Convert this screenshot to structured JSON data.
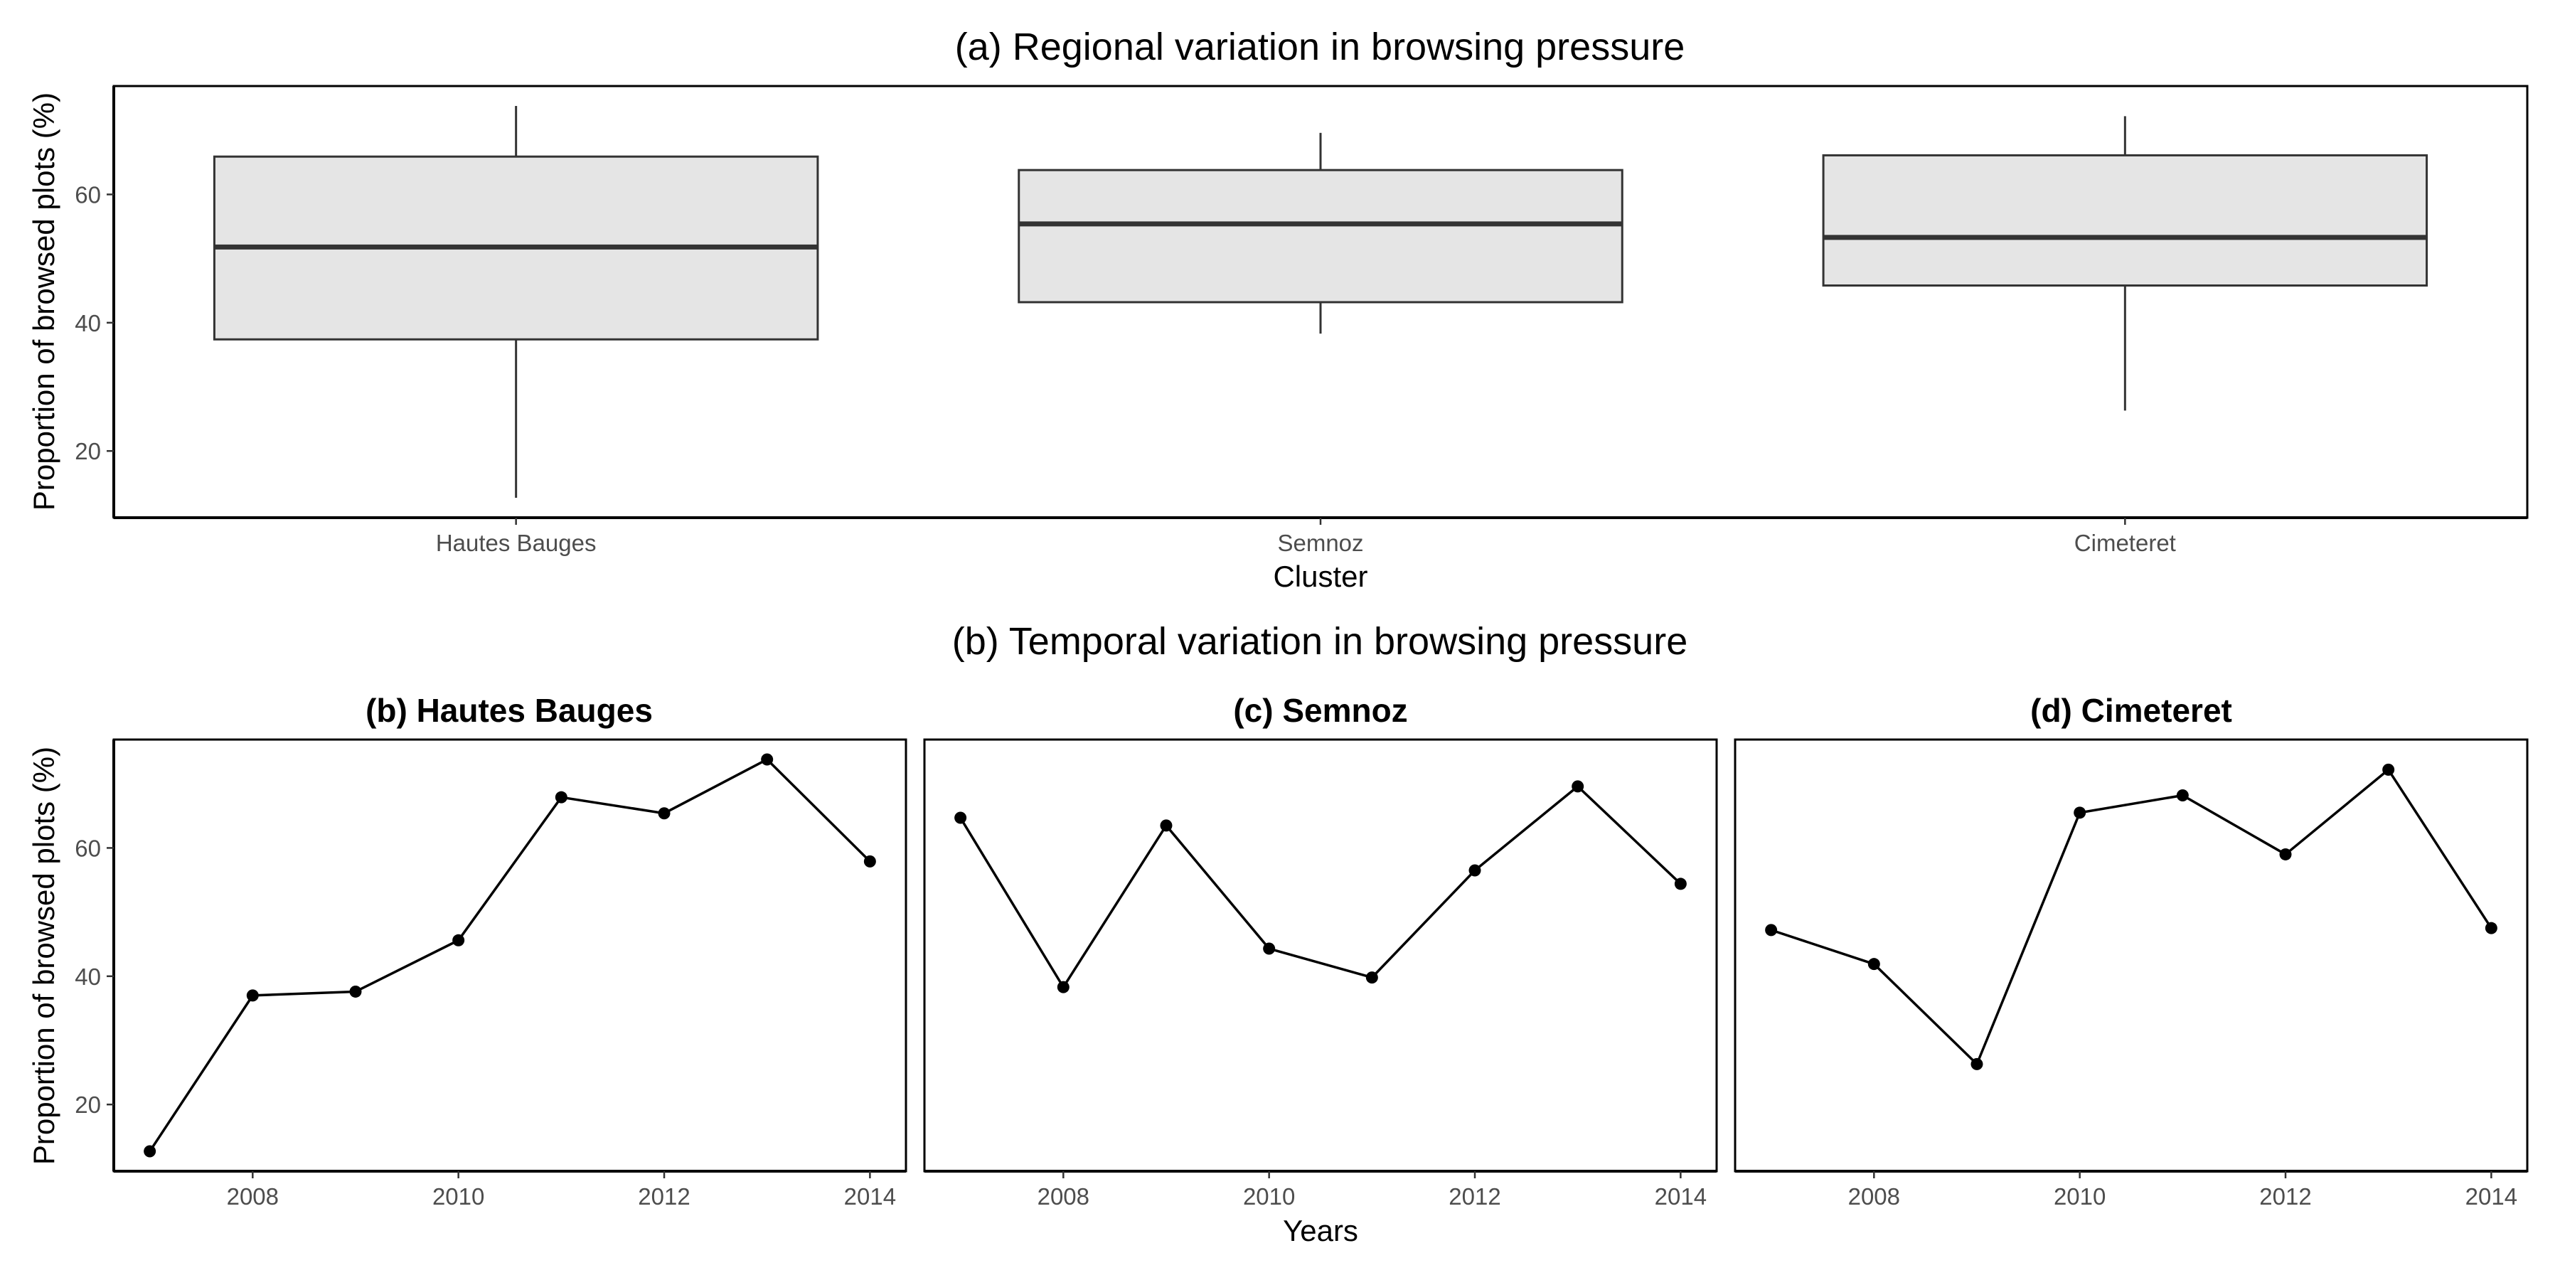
{
  "figure": {
    "title_a": "(a) Regional variation in browsing pressure",
    "title_b": "(b) Temporal variation in browsing pressure",
    "colors": {
      "box_fill": "#e5e5e5",
      "box_stroke": "#333333",
      "line": "#000000",
      "frame": "#000000",
      "tick_text": "#4d4d4d"
    }
  },
  "chart_data": [
    {
      "type": "boxplot",
      "title": "(a) Regional variation in browsing pressure",
      "xlabel": "Cluster",
      "ylabel": "Proportion of browsed plots (%)",
      "categories": [
        "Hautes Bauges",
        "Semnoz",
        "Cimeteret"
      ],
      "boxes": [
        {
          "category": "Hautes Bauges",
          "min": 12.7,
          "q1": 37.4,
          "median": 51.8,
          "q3": 65.9,
          "max": 73.8
        },
        {
          "category": "Semnoz",
          "min": 38.3,
          "q1": 43.2,
          "median": 55.4,
          "q3": 63.8,
          "max": 69.6
        },
        {
          "category": "Cimeteret",
          "min": 26.3,
          "q1": 45.8,
          "median": 53.3,
          "q3": 66.1,
          "max": 72.2
        }
      ],
      "yticks": [
        20,
        40,
        60
      ],
      "ylim": [
        9.6,
        76.9
      ],
      "grid": false
    },
    {
      "type": "line",
      "title": "(b) Temporal variation in browsing pressure",
      "xlabel": "Years",
      "ylabel": "Proportion of browsed plots (%)",
      "xticks": [
        2008,
        2010,
        2012,
        2014
      ],
      "yticks": [
        20,
        40,
        60
      ],
      "xlim": [
        2006.65,
        2014.35
      ],
      "ylim": [
        9.6,
        76.9
      ],
      "grid": false,
      "panels": [
        {
          "title": "(b) Hautes Bauges",
          "x": [
            2007,
            2008,
            2009,
            2010,
            2011,
            2012,
            2013,
            2014
          ],
          "y": [
            12.7,
            37.0,
            37.6,
            45.6,
            67.9,
            65.4,
            73.8,
            57.9
          ]
        },
        {
          "title": "(c) Semnoz",
          "x": [
            2007,
            2008,
            2009,
            2010,
            2011,
            2012,
            2013,
            2014
          ],
          "y": [
            64.7,
            38.3,
            63.5,
            44.3,
            39.8,
            56.5,
            69.6,
            54.4
          ]
        },
        {
          "title": "(d) Cimeteret",
          "x": [
            2007,
            2008,
            2009,
            2010,
            2011,
            2012,
            2013,
            2014
          ],
          "y": [
            47.2,
            41.9,
            26.3,
            65.5,
            68.2,
            59.0,
            72.2,
            47.5
          ]
        }
      ]
    }
  ]
}
